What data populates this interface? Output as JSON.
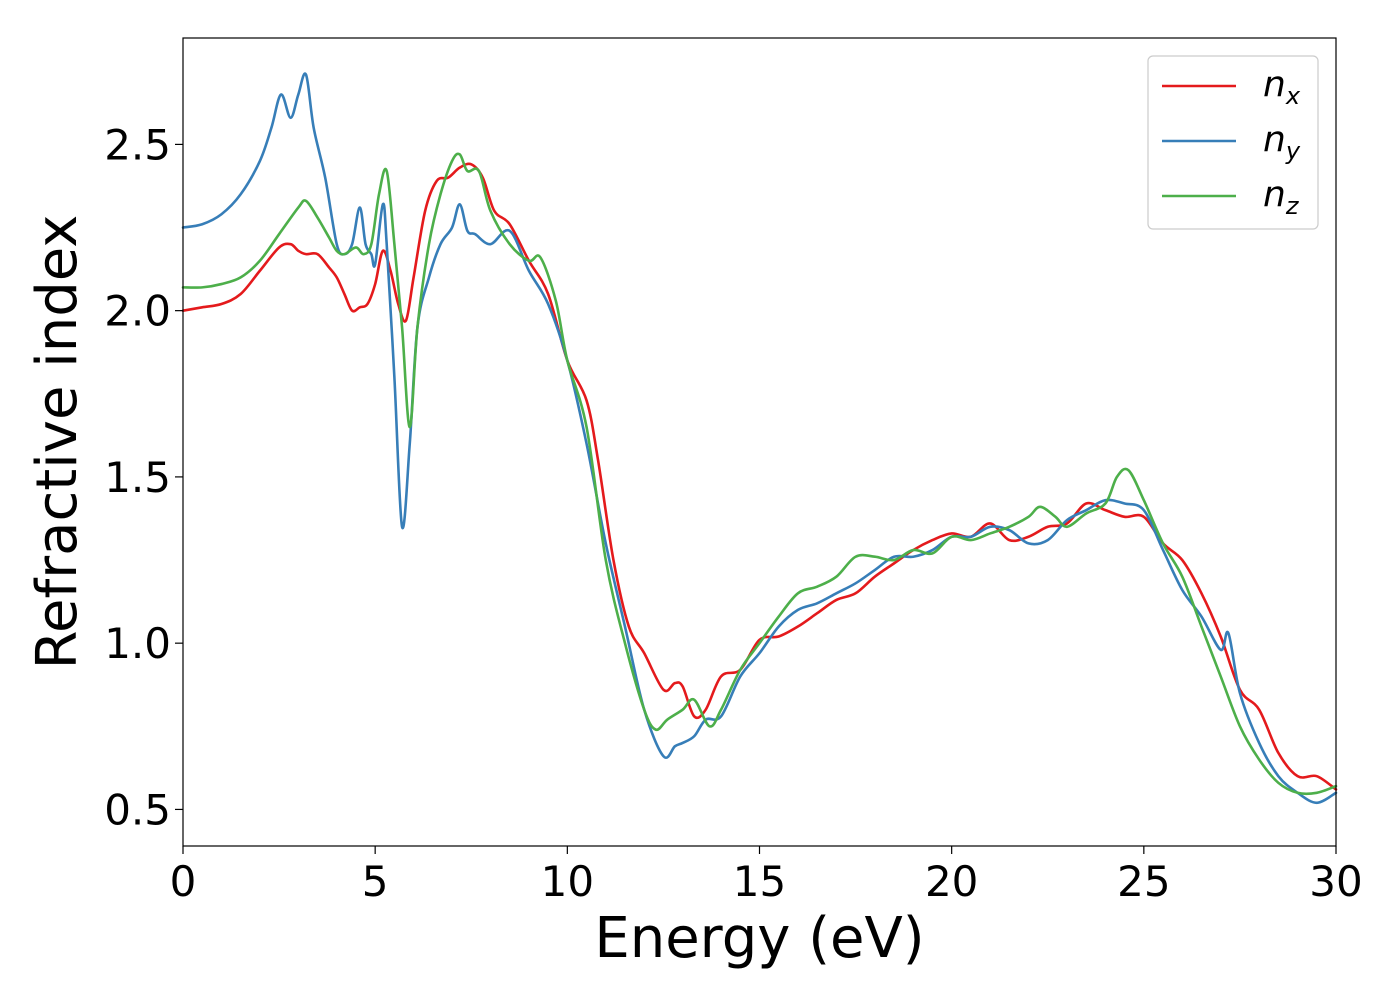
{
  "chart_data": {
    "type": "line",
    "xlabel": "Energy (eV)",
    "ylabel": "Refractive index",
    "xlim": [
      0,
      30
    ],
    "ylim": [
      0.39,
      2.82
    ],
    "xticks": [
      "0",
      "5",
      "10",
      "15",
      "20",
      "25",
      "30"
    ],
    "yticks": [
      "0.5",
      "1.0",
      "1.5",
      "2.0",
      "2.5"
    ],
    "grid": false,
    "legend_position": "top-right",
    "series": [
      {
        "name": "n",
        "subscript": "x",
        "color": "#e41a1c",
        "x": [
          0,
          0.5,
          1.0,
          1.5,
          2.0,
          2.5,
          2.8,
          3.0,
          3.2,
          3.5,
          3.8,
          4.0,
          4.2,
          4.4,
          4.6,
          4.8,
          5.0,
          5.2,
          5.4,
          5.6,
          5.8,
          6.0,
          6.3,
          6.6,
          6.9,
          7.2,
          7.5,
          7.8,
          8.1,
          8.5,
          9.0,
          9.5,
          10.0,
          10.5,
          10.8,
          11.2,
          11.6,
          12.0,
          12.5,
          12.8,
          13.0,
          13.3,
          13.6,
          14.0,
          14.5,
          15.0,
          15.5,
          16.0,
          16.5,
          17.0,
          17.5,
          18.0,
          18.5,
          19.0,
          19.5,
          20.0,
          20.5,
          21.0,
          21.5,
          22.0,
          22.5,
          23.0,
          23.5,
          24.0,
          24.5,
          25.0,
          25.5,
          26.0,
          26.5,
          27.0,
          27.5,
          28.0,
          28.5,
          29.0,
          29.5,
          30.0
        ],
        "y": [
          2.0,
          2.01,
          2.02,
          2.05,
          2.12,
          2.19,
          2.2,
          2.18,
          2.17,
          2.17,
          2.13,
          2.1,
          2.05,
          2.0,
          2.01,
          2.02,
          2.08,
          2.18,
          2.12,
          2.02,
          1.97,
          2.1,
          2.3,
          2.39,
          2.4,
          2.43,
          2.44,
          2.4,
          2.3,
          2.26,
          2.15,
          2.05,
          1.85,
          1.73,
          1.55,
          1.25,
          1.05,
          0.97,
          0.86,
          0.88,
          0.87,
          0.78,
          0.8,
          0.9,
          0.92,
          1.01,
          1.02,
          1.05,
          1.09,
          1.13,
          1.15,
          1.2,
          1.24,
          1.28,
          1.31,
          1.33,
          1.32,
          1.36,
          1.31,
          1.32,
          1.35,
          1.36,
          1.42,
          1.4,
          1.38,
          1.38,
          1.3,
          1.25,
          1.15,
          1.02,
          0.86,
          0.8,
          0.67,
          0.6,
          0.6,
          0.56
        ]
      },
      {
        "name": "n",
        "subscript": "y",
        "color": "#377eb8",
        "x": [
          0,
          0.5,
          1.0,
          1.5,
          2.0,
          2.3,
          2.55,
          2.8,
          3.0,
          3.2,
          3.4,
          3.7,
          4.0,
          4.2,
          4.4,
          4.6,
          4.75,
          4.9,
          5.0,
          5.2,
          5.3,
          5.5,
          5.7,
          5.9,
          6.1,
          6.4,
          6.7,
          7.0,
          7.2,
          7.4,
          7.6,
          8.0,
          8.5,
          9.0,
          9.5,
          10.0,
          10.5,
          11.0,
          11.5,
          12.0,
          12.5,
          12.8,
          13.0,
          13.3,
          13.6,
          14.0,
          14.5,
          15.0,
          15.5,
          16.0,
          16.5,
          17.0,
          17.5,
          18.0,
          18.5,
          19.0,
          19.5,
          20.0,
          20.5,
          21.0,
          21.5,
          22.0,
          22.5,
          23.0,
          23.5,
          24.0,
          24.5,
          25.0,
          25.5,
          26.0,
          26.5,
          27.0,
          27.2,
          27.5,
          28.0,
          28.5,
          29.0,
          29.5,
          30.0
        ],
        "y": [
          2.25,
          2.26,
          2.29,
          2.35,
          2.45,
          2.55,
          2.65,
          2.58,
          2.65,
          2.71,
          2.55,
          2.4,
          2.2,
          2.17,
          2.2,
          2.31,
          2.2,
          2.17,
          2.14,
          2.32,
          2.2,
          1.8,
          1.35,
          1.6,
          1.95,
          2.1,
          2.2,
          2.25,
          2.32,
          2.24,
          2.23,
          2.2,
          2.24,
          2.12,
          2.02,
          1.85,
          1.6,
          1.3,
          1.05,
          0.8,
          0.66,
          0.69,
          0.7,
          0.72,
          0.77,
          0.78,
          0.9,
          0.97,
          1.05,
          1.1,
          1.12,
          1.15,
          1.18,
          1.22,
          1.26,
          1.26,
          1.28,
          1.32,
          1.32,
          1.35,
          1.34,
          1.3,
          1.31,
          1.37,
          1.4,
          1.43,
          1.42,
          1.4,
          1.28,
          1.16,
          1.08,
          0.98,
          1.03,
          0.85,
          0.7,
          0.6,
          0.55,
          0.52,
          0.55
        ]
      },
      {
        "name": "n",
        "subscript": "z",
        "color": "#4daf4a",
        "x": [
          0,
          0.5,
          1.0,
          1.5,
          2.0,
          2.5,
          3.0,
          3.2,
          3.5,
          3.8,
          4.0,
          4.2,
          4.5,
          4.7,
          4.9,
          5.1,
          5.3,
          5.5,
          5.7,
          5.9,
          6.1,
          6.4,
          6.7,
          7.0,
          7.2,
          7.4,
          7.7,
          8.0,
          8.5,
          9.0,
          9.3,
          9.7,
          10.0,
          10.5,
          11.0,
          11.5,
          12.0,
          12.3,
          12.6,
          13.0,
          13.3,
          13.7,
          14.0,
          14.5,
          15.0,
          15.5,
          16.0,
          16.5,
          17.0,
          17.5,
          18.0,
          18.5,
          19.0,
          19.5,
          20.0,
          20.5,
          21.0,
          21.5,
          22.0,
          22.3,
          22.7,
          23.0,
          23.5,
          24.0,
          24.3,
          24.6,
          25.0,
          25.5,
          26.0,
          26.5,
          27.0,
          27.5,
          28.0,
          28.5,
          29.0,
          29.5,
          30.0
        ],
        "y": [
          2.07,
          2.07,
          2.08,
          2.1,
          2.15,
          2.23,
          2.31,
          2.33,
          2.28,
          2.22,
          2.18,
          2.17,
          2.19,
          2.17,
          2.2,
          2.35,
          2.42,
          2.2,
          1.95,
          1.65,
          1.95,
          2.2,
          2.35,
          2.45,
          2.47,
          2.42,
          2.42,
          2.3,
          2.2,
          2.15,
          2.16,
          2.03,
          1.85,
          1.65,
          1.25,
          1.0,
          0.8,
          0.74,
          0.77,
          0.8,
          0.83,
          0.75,
          0.8,
          0.92,
          1.0,
          1.08,
          1.15,
          1.17,
          1.2,
          1.26,
          1.26,
          1.25,
          1.28,
          1.27,
          1.32,
          1.31,
          1.33,
          1.35,
          1.38,
          1.41,
          1.38,
          1.35,
          1.39,
          1.42,
          1.5,
          1.52,
          1.43,
          1.3,
          1.2,
          1.05,
          0.9,
          0.75,
          0.65,
          0.58,
          0.55,
          0.55,
          0.57
        ]
      }
    ]
  }
}
